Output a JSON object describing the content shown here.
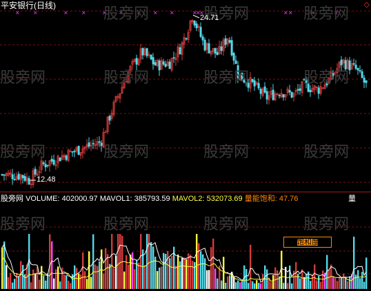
{
  "title": "平安银行(日线)",
  "top_right_symbol": "◇",
  "watermark": "股旁网",
  "price_panel": {
    "high_label": "24.71",
    "low_label": "12.48"
  },
  "volume_panel": {
    "name": "股旁网",
    "volume_label": "VOLUME:",
    "volume_value": "402000.97",
    "mavol1_label": "MAVOL1:",
    "mavol1_value": "385793.59",
    "mavol2_label": "MAVOL2:",
    "mavol2_value": "532073.69",
    "saturation_label": "量能饱和:",
    "saturation_value": "47.76",
    "badge_text": "饱和度",
    "side_char": "量"
  },
  "colors": {
    "up": "#d23b3b",
    "down": "#54d9e8",
    "grid": "#7a1010",
    "yellow": "#ffff40",
    "magenta": "#ff44ff",
    "white": "#ffffff",
    "orange": "#ff8800"
  },
  "chart_data": {
    "type": "candlestick",
    "high": 24.71,
    "low": 12.48,
    "indicators": [
      "VOLUME",
      "MAVOL1",
      "MAVOL2",
      "量能饱和"
    ]
  }
}
